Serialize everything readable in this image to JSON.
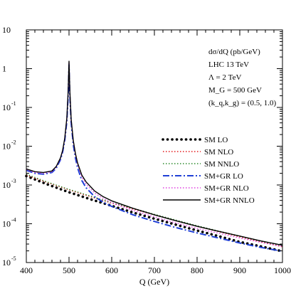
{
  "chart_data": {
    "type": "line",
    "xlabel": "Q (GeV)",
    "xlim": [
      400,
      1000
    ],
    "ylim_log10": [
      -5,
      1
    ],
    "yscale": "log",
    "grid": false,
    "legend_position": "right-center",
    "x_ticks": [
      400,
      500,
      600,
      700,
      800,
      900,
      1000
    ],
    "y_ticks": [
      {
        "base": "10",
        "exp": "-5",
        "log": -5
      },
      {
        "base": "10",
        "exp": "-4",
        "log": -4
      },
      {
        "base": "10",
        "exp": "-3",
        "log": -3
      },
      {
        "base": "10",
        "exp": "-2",
        "log": -2
      },
      {
        "base": "10",
        "exp": "-1",
        "log": -1
      },
      {
        "base": "1",
        "exp": "",
        "log": 0
      },
      {
        "base": "10",
        "exp": "",
        "log": 1
      }
    ],
    "annotations": [
      "dσ/dQ (pb/GeV)",
      "LHC 13 TeV",
      "Λ = 2 TeV",
      "M_G = 500 GeV",
      "(k_q,k_g) = (0.5, 1.0)"
    ],
    "series": [
      {
        "name": "SM LO",
        "color": "#000000",
        "style": "dots",
        "x": [
          400,
          450,
          500,
          550,
          600,
          650,
          700,
          750,
          800,
          850,
          900,
          950,
          1000
        ],
        "y": [
          0.0017,
          0.00103,
          0.00065,
          0.00043,
          0.00029,
          0.000195,
          0.000135,
          9.5e-05,
          6.7e-05,
          4.8e-05,
          3.4e-05,
          2.6e-05,
          1.95e-05
        ]
      },
      {
        "name": "SM NLO",
        "color": "#e41a1c",
        "style": "dotted",
        "x": [
          400,
          450,
          500,
          550,
          600,
          650,
          700,
          750,
          800,
          850,
          900,
          950,
          1000
        ],
        "y": [
          0.0018,
          0.00115,
          0.00075,
          0.0005,
          0.00034,
          0.00024,
          0.00017,
          0.00012,
          8.6e-05,
          6.3e-05,
          4.6e-05,
          3.4e-05,
          2.55e-05
        ]
      },
      {
        "name": "SM NNLO",
        "color": "#2e8b2e",
        "style": "dotted",
        "x": [
          400,
          450,
          500,
          550,
          600,
          650,
          700,
          750,
          800,
          850,
          900,
          950,
          1000
        ],
        "y": [
          0.0019,
          0.00118,
          0.00077,
          0.00052,
          0.00035,
          0.00025,
          0.000175,
          0.000125,
          8.9e-05,
          6.5e-05,
          4.8e-05,
          3.55e-05,
          2.65e-05
        ]
      },
      {
        "name": "SM+GR LO",
        "color": "#1f3fd6",
        "style": "dashdot",
        "x": [
          400,
          420,
          440,
          460,
          470,
          480,
          485,
          490,
          495,
          498,
          500,
          502,
          505,
          510,
          515,
          520,
          530,
          540,
          560,
          580,
          600,
          650,
          700,
          750,
          800,
          850,
          900,
          950,
          1000
        ],
        "y": [
          0.0024,
          0.002,
          0.0019,
          0.0021,
          0.0027,
          0.0045,
          0.007,
          0.014,
          0.045,
          0.2,
          1.25,
          0.2,
          0.04,
          0.011,
          0.005,
          0.0028,
          0.0013,
          0.00085,
          0.0005,
          0.00036,
          0.00028,
          0.00017,
          0.000115,
          8e-05,
          5.8e-05,
          4.3e-05,
          3.2e-05,
          2.45e-05,
          1.95e-05
        ]
      },
      {
        "name": "SM+GR NLO",
        "color": "#e040e0",
        "style": "dotted",
        "x": [
          400,
          420,
          440,
          460,
          470,
          480,
          485,
          490,
          495,
          498,
          500,
          502,
          505,
          510,
          515,
          520,
          530,
          540,
          560,
          580,
          600,
          650,
          700,
          750,
          800,
          850,
          900,
          950,
          1000
        ],
        "y": [
          0.0025,
          0.0021,
          0.002,
          0.0022,
          0.0029,
          0.0048,
          0.0075,
          0.015,
          0.05,
          0.24,
          1.45,
          0.24,
          0.045,
          0.013,
          0.006,
          0.0034,
          0.0016,
          0.00105,
          0.00062,
          0.00045,
          0.00035,
          0.00022,
          0.00015,
          0.000105,
          7.6e-05,
          5.7e-05,
          4.3e-05,
          3.3e-05,
          2.6e-05
        ]
      },
      {
        "name": "SM+GR NNLO",
        "color": "#000000",
        "style": "solid",
        "x": [
          400,
          420,
          440,
          460,
          470,
          480,
          485,
          490,
          495,
          498,
          500,
          502,
          505,
          510,
          515,
          520,
          530,
          540,
          560,
          580,
          600,
          650,
          700,
          750,
          800,
          850,
          900,
          950,
          1000
        ],
        "y": [
          0.0026,
          0.0022,
          0.0021,
          0.0023,
          0.003,
          0.005,
          0.0078,
          0.016,
          0.055,
          0.26,
          1.55,
          0.26,
          0.05,
          0.014,
          0.0065,
          0.0037,
          0.0018,
          0.0012,
          0.0007,
          0.0005,
          0.00039,
          0.00025,
          0.00017,
          0.00012,
          8.6e-05,
          6.4e-05,
          4.8e-05,
          3.6e-05,
          2.8e-05
        ]
      }
    ]
  }
}
